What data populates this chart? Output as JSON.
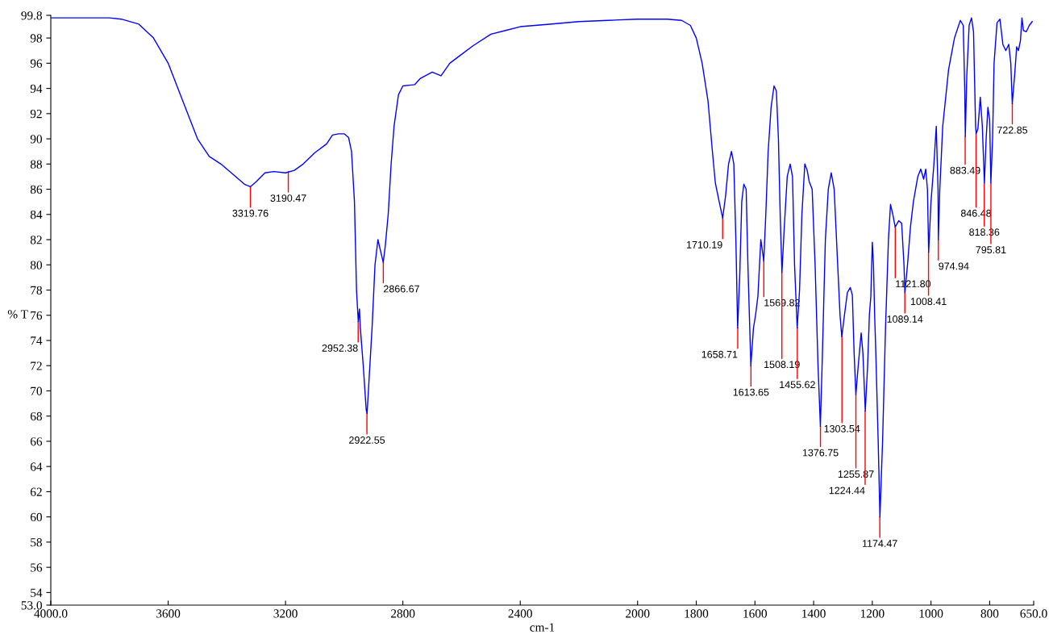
{
  "chart_data": {
    "type": "line",
    "xlabel": "cm-1",
    "ylabel": "% T",
    "xlim": [
      4000,
      650
    ],
    "ylim": [
      53.0,
      99.8
    ],
    "xticks": [
      {
        "value": 4000,
        "label": "4000.0"
      },
      3600,
      3200,
      2800,
      2400,
      2000,
      1600,
      1200,
      800,
      1800,
      1400,
      1000,
      {
        "value": 650,
        "label": "650.0"
      }
    ],
    "yticks": [
      {
        "value": 53.0,
        "label": "53.0"
      },
      54,
      56,
      58,
      60,
      62,
      64,
      66,
      68,
      70,
      72,
      74,
      76,
      78,
      80,
      82,
      84,
      86,
      88,
      90,
      92,
      94,
      96,
      98,
      {
        "value": 99.8,
        "label": "99.8"
      }
    ],
    "grid": false,
    "legend": false,
    "marker": "none",
    "line_style": "solid",
    "series": [
      {
        "color": "#0000ff",
        "x": [
          4000,
          3800,
          3760,
          3700,
          3650,
          3600,
          3550,
          3500,
          3460,
          3420,
          3380,
          3340,
          3320,
          3300,
          3270,
          3240,
          3200,
          3170,
          3140,
          3100,
          3060,
          3040,
          3020,
          3000,
          2985,
          2975,
          2965,
          2958,
          2952,
          2948,
          2945,
          2935,
          2925,
          2922,
          2915,
          2905,
          2895,
          2885,
          2875,
          2867,
          2860,
          2850,
          2840,
          2830,
          2815,
          2800,
          2760,
          2740,
          2700,
          2670,
          2640,
          2600,
          2560,
          2500,
          2450,
          2400,
          2300,
          2200,
          2100,
          2000,
          1900,
          1850,
          1820,
          1800,
          1780,
          1760,
          1745,
          1735,
          1720,
          1710,
          1700,
          1690,
          1680,
          1672,
          1665,
          1659,
          1652,
          1645,
          1638,
          1630,
          1624,
          1614,
          1605,
          1598,
          1590,
          1580,
          1574,
          1570,
          1563,
          1555,
          1545,
          1535,
          1527,
          1520,
          1514,
          1508,
          1500,
          1490,
          1480,
          1472,
          1465,
          1456,
          1448,
          1440,
          1430,
          1422,
          1415,
          1405,
          1395,
          1385,
          1377,
          1370,
          1360,
          1350,
          1340,
          1330,
          1320,
          1310,
          1304,
          1295,
          1285,
          1275,
          1268,
          1262,
          1256,
          1248,
          1238,
          1232,
          1224,
          1216,
          1210,
          1205,
          1200,
          1196,
          1192,
          1188,
          1180,
          1174,
          1165,
          1155,
          1145,
          1138,
          1130,
          1122,
          1110,
          1100,
          1092,
          1089,
          1080,
          1070,
          1060,
          1045,
          1035,
          1025,
          1018,
          1012,
          1008,
          1000,
          990,
          982,
          976,
          975,
          970,
          960,
          940,
          920,
          900,
          890,
          885,
          883,
          878,
          870,
          862,
          855,
          848,
          846,
          840,
          832,
          825,
          818,
          812,
          806,
          800,
          796,
          790,
          785,
          775,
          765,
          755,
          745,
          735,
          728,
          723,
          715,
          708,
          702,
          695,
          690,
          685,
          675,
          665,
          655
        ],
        "values": [
          99.6,
          99.6,
          99.5,
          99.1,
          98.0,
          96.0,
          93.0,
          90.0,
          88.6,
          88.0,
          87.2,
          86.4,
          86.2,
          86.6,
          87.3,
          87.4,
          87.3,
          87.5,
          88.0,
          88.9,
          89.6,
          90.3,
          90.4,
          90.4,
          90.1,
          89.0,
          85.0,
          78.0,
          75.5,
          76.5,
          75.0,
          72.0,
          68.5,
          68.2,
          71.0,
          75.0,
          80.0,
          82.0,
          81.0,
          80.2,
          81.5,
          84.0,
          88.0,
          91.0,
          93.5,
          94.2,
          94.3,
          94.8,
          95.3,
          95.0,
          96.0,
          96.7,
          97.4,
          98.3,
          98.6,
          98.9,
          99.1,
          99.3,
          99.4,
          99.5,
          99.5,
          99.4,
          99.0,
          98.0,
          96.0,
          93.0,
          89.0,
          86.5,
          84.8,
          83.7,
          85.5,
          88.0,
          89.0,
          88.0,
          82.0,
          75.0,
          79.0,
          85.0,
          86.4,
          86.0,
          80.0,
          72.0,
          75.0,
          76.0,
          77.5,
          82.0,
          81.0,
          80.3,
          84.0,
          89.0,
          92.5,
          94.2,
          93.8,
          90.0,
          84.0,
          79.4,
          83.0,
          87.0,
          88.0,
          87.0,
          80.0,
          75.0,
          78.0,
          84.0,
          88.0,
          87.5,
          86.6,
          86.0,
          80.0,
          72.0,
          67.2,
          73.0,
          82.0,
          86.0,
          87.3,
          86.0,
          81.0,
          76.0,
          74.3,
          76.0,
          77.8,
          78.2,
          77.6,
          73.0,
          69.7,
          72.0,
          74.6,
          73.0,
          68.4,
          72.0,
          76.0,
          77.5,
          81.8,
          80.0,
          76.0,
          73.0,
          66.0,
          60.0,
          66.0,
          75.0,
          82.0,
          84.8,
          84.0,
          83.0,
          83.5,
          83.3,
          80.0,
          77.8,
          80.0,
          83.0,
          85.0,
          87.0,
          87.6,
          86.8,
          87.6,
          86.0,
          81.0,
          85.0,
          88.0,
          91.0,
          86.0,
          82.0,
          86.0,
          91.0,
          95.5,
          98.0,
          99.4,
          99.0,
          94.0,
          90.2,
          95.0,
          99.0,
          99.6,
          98.5,
          91.0,
          90.4,
          90.8,
          93.3,
          91.0,
          86.5,
          90.0,
          92.5,
          91.5,
          86.5,
          90.0,
          96.0,
          99.2,
          99.5,
          97.5,
          97.0,
          97.5,
          96.0,
          92.8,
          95.0,
          97.3,
          97.0,
          97.8,
          99.6,
          98.6,
          98.5,
          99.0,
          99.3
        ]
      }
    ],
    "annotations": [
      {
        "text": "3319.76",
        "x": 3319.76,
        "y": 86.2
      },
      {
        "text": "3190.47",
        "x": 3190.47,
        "y": 87.4
      },
      {
        "text": "2952.38",
        "x": 2952.38,
        "y": 75.5
      },
      {
        "text": "2922.55",
        "x": 2922.55,
        "y": 68.2
      },
      {
        "text": "2866.67",
        "x": 2866.67,
        "y": 80.2
      },
      {
        "text": "1710.19",
        "x": 1710.19,
        "y": 83.7
      },
      {
        "text": "1658.71",
        "x": 1658.71,
        "y": 75.0
      },
      {
        "text": "1613.65",
        "x": 1613.65,
        "y": 72.0
      },
      {
        "text": "1569.82",
        "x": 1569.82,
        "y": 80.3
      },
      {
        "text": "1508.19",
        "x": 1508.19,
        "y": 79.4
      },
      {
        "text": "1455.62",
        "x": 1455.62,
        "y": 75.0
      },
      {
        "text": "1376.75",
        "x": 1376.75,
        "y": 67.2
      },
      {
        "text": "1303.54",
        "x": 1303.54,
        "y": 74.3
      },
      {
        "text": "1255.87",
        "x": 1255.87,
        "y": 69.7
      },
      {
        "text": "1224.44",
        "x": 1224.44,
        "y": 68.4
      },
      {
        "text": "1174.47",
        "x": 1174.47,
        "y": 60.0
      },
      {
        "text": "1121.80",
        "x": 1121.8,
        "y": 83.0
      },
      {
        "text": "1089.14",
        "x": 1089.14,
        "y": 77.8
      },
      {
        "text": "1008.41",
        "x": 1008.41,
        "y": 81.0
      },
      {
        "text": "974.94",
        "x": 974.94,
        "y": 82.0
      },
      {
        "text": "883.49",
        "x": 883.49,
        "y": 90.2
      },
      {
        "text": "846.48",
        "x": 846.48,
        "y": 90.4
      },
      {
        "text": "818.36",
        "x": 818.36,
        "y": 86.5
      },
      {
        "text": "795.81",
        "x": 795.81,
        "y": 86.5
      },
      {
        "text": "722.85",
        "x": 722.85,
        "y": 92.8
      }
    ]
  }
}
